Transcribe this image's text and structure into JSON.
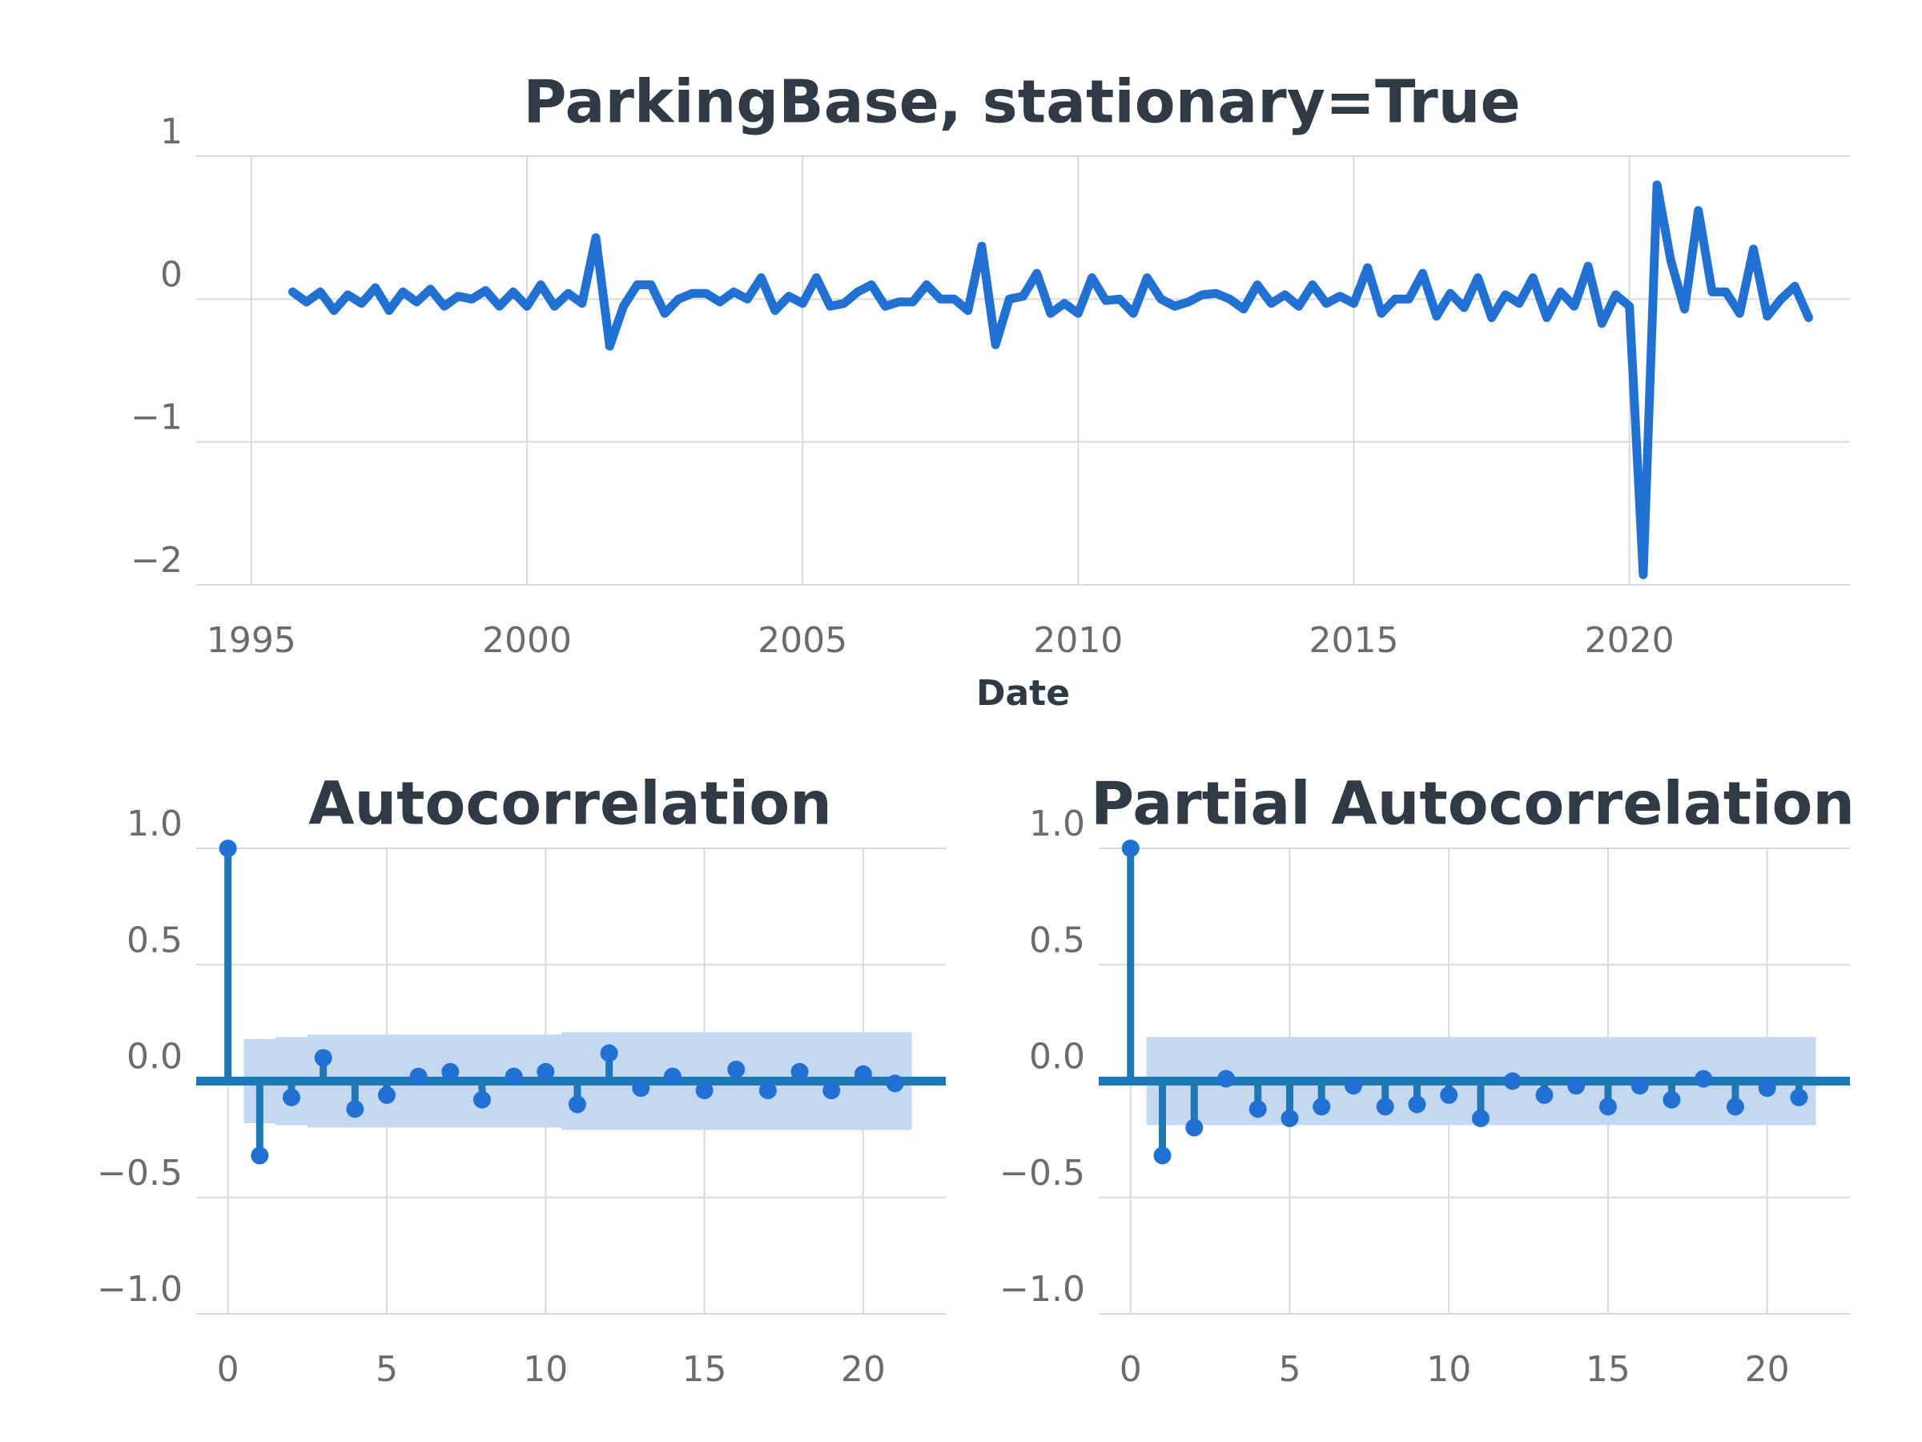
{
  "chart_data": [
    {
      "type": "line",
      "title": "ParkingBase, stationary=True",
      "xlabel": "Date",
      "color": "#2171d2",
      "grid": true,
      "x": [
        1995.75,
        1996,
        1996.25,
        1996.5,
        1996.75,
        1997,
        1997.25,
        1997.5,
        1997.75,
        1998,
        1998.25,
        1998.5,
        1998.75,
        1999,
        1999.25,
        1999.5,
        1999.75,
        2000,
        2000.25,
        2000.5,
        2000.75,
        2001,
        2001.25,
        2001.5,
        2001.75,
        2002,
        2002.25,
        2002.5,
        2002.75,
        2003,
        2003.25,
        2003.5,
        2003.75,
        2004,
        2004.25,
        2004.5,
        2004.75,
        2005,
        2005.25,
        2005.5,
        2005.75,
        2006,
        2006.25,
        2006.5,
        2006.75,
        2007,
        2007.25,
        2007.5,
        2007.75,
        2008,
        2008.25,
        2008.5,
        2008.75,
        2009,
        2009.25,
        2009.5,
        2009.75,
        2010,
        2010.25,
        2010.5,
        2010.75,
        2011,
        2011.25,
        2011.5,
        2011.75,
        2012,
        2012.25,
        2012.5,
        2012.75,
        2013,
        2013.25,
        2013.5,
        2013.75,
        2014,
        2014.25,
        2014.5,
        2014.75,
        2015,
        2015.25,
        2015.5,
        2015.75,
        2016,
        2016.25,
        2016.5,
        2016.75,
        2017,
        2017.25,
        2017.5,
        2017.75,
        2018,
        2018.25,
        2018.5,
        2018.75,
        2019,
        2019.25,
        2019.5,
        2019.75,
        2020,
        2020.25,
        2020.5,
        2020.75,
        2021,
        2021.25,
        2021.5,
        2021.75,
        2022,
        2022.25,
        2022.5,
        2022.75,
        2023,
        2023.25
      ],
      "values": [
        0.05,
        -0.02,
        0.05,
        -0.08,
        0.03,
        -0.03,
        0.08,
        -0.08,
        0.05,
        -0.02,
        0.07,
        -0.05,
        0.02,
        0.0,
        0.06,
        -0.05,
        0.05,
        -0.05,
        0.1,
        -0.05,
        0.04,
        -0.03,
        0.43,
        -0.33,
        -0.05,
        0.1,
        0.1,
        -0.1,
        0.0,
        0.04,
        0.04,
        -0.02,
        0.05,
        0.0,
        0.15,
        -0.08,
        0.02,
        -0.03,
        0.15,
        -0.05,
        -0.03,
        0.05,
        0.1,
        -0.05,
        -0.02,
        -0.02,
        0.1,
        0.0,
        0.0,
        -0.08,
        0.37,
        -0.32,
        0.0,
        0.02,
        0.18,
        -0.1,
        -0.03,
        -0.1,
        0.15,
        -0.01,
        0.0,
        -0.1,
        0.15,
        0.0,
        -0.05,
        -0.02,
        0.03,
        0.04,
        0.0,
        -0.07,
        0.1,
        -0.03,
        0.03,
        -0.05,
        0.1,
        -0.03,
        0.02,
        -0.03,
        0.22,
        -0.1,
        0.0,
        0.0,
        0.18,
        -0.12,
        0.04,
        -0.06,
        0.15,
        -0.13,
        0.03,
        -0.03,
        0.15,
        -0.13,
        0.05,
        -0.05,
        0.23,
        -0.17,
        0.03,
        -0.05,
        -1.93,
        0.8,
        0.27,
        -0.07,
        0.62,
        0.05,
        0.05,
        -0.1,
        0.35,
        -0.12,
        0.0,
        0.09,
        -0.13
      ],
      "xlim": [
        1994,
        2024
      ],
      "ylim": [
        -2,
        1
      ],
      "xticks": [
        1995,
        2000,
        2005,
        2010,
        2015,
        2020
      ],
      "yticks": [
        1,
        0,
        {
          "value": -1,
          "label": "−1"
        },
        {
          "value": -2,
          "label": "−2"
        }
      ]
    },
    {
      "type": "stem",
      "title": "Autocorrelation",
      "color": "#1f77b4",
      "marker_color": "#2171d2",
      "band_color": "#c5d8f1",
      "grid": true,
      "x": [
        0,
        1,
        2,
        3,
        4,
        5,
        6,
        7,
        8,
        9,
        10,
        11,
        12,
        13,
        14,
        15,
        16,
        17,
        18,
        19,
        20,
        21
      ],
      "values": [
        1.0,
        -0.32,
        -0.07,
        0.1,
        -0.12,
        -0.06,
        0.02,
        0.04,
        -0.08,
        0.02,
        0.04,
        -0.1,
        0.12,
        -0.03,
        0.02,
        -0.04,
        0.05,
        -0.04,
        0.04,
        -0.04,
        0.03,
        -0.01
      ],
      "conf_upper": [
        0.18,
        0.19,
        0.2,
        0.2,
        0.2,
        0.2,
        0.2,
        0.2,
        0.2,
        0.2,
        0.21,
        0.21,
        0.21,
        0.21,
        0.21,
        0.21,
        0.21,
        0.21,
        0.21,
        0.21,
        0.21
      ],
      "conf_lower": [
        -0.18,
        -0.19,
        -0.2,
        -0.2,
        -0.2,
        -0.2,
        -0.2,
        -0.2,
        -0.2,
        -0.2,
        -0.21,
        -0.21,
        -0.21,
        -0.21,
        -0.21,
        -0.21,
        -0.21,
        -0.21,
        -0.21,
        -0.21,
        -0.21
      ],
      "xlim": [
        -1,
        22.6
      ],
      "ylim": [
        -1,
        1
      ],
      "xticks": [
        0,
        5,
        10,
        15,
        20
      ],
      "yticks": [
        {
          "value": 1,
          "label": "1.0"
        },
        0.5,
        {
          "value": 0,
          "label": "0.0"
        },
        {
          "value": -0.5,
          "label": "−0.5"
        },
        {
          "value": -1,
          "label": "−1.0"
        }
      ]
    },
    {
      "type": "stem",
      "title": "Partial Autocorrelation",
      "color": "#1f77b4",
      "marker_color": "#2171d2",
      "band_color": "#c5d8f1",
      "grid": true,
      "x": [
        0,
        1,
        2,
        3,
        4,
        5,
        6,
        7,
        8,
        9,
        10,
        11,
        12,
        13,
        14,
        15,
        16,
        17,
        18,
        19,
        20,
        21
      ],
      "values": [
        1.0,
        -0.32,
        -0.2,
        0.01,
        -0.12,
        -0.16,
        -0.11,
        -0.02,
        -0.11,
        -0.1,
        -0.06,
        -0.16,
        0.0,
        -0.06,
        -0.02,
        -0.11,
        -0.02,
        -0.08,
        0.01,
        -0.11,
        -0.03,
        -0.07
      ],
      "conf_upper": [
        0.19,
        0.19,
        0.19,
        0.19,
        0.19,
        0.19,
        0.19,
        0.19,
        0.19,
        0.19,
        0.19,
        0.19,
        0.19,
        0.19,
        0.19,
        0.19,
        0.19,
        0.19,
        0.19,
        0.19,
        0.19
      ],
      "conf_lower": [
        -0.19,
        -0.19,
        -0.19,
        -0.19,
        -0.19,
        -0.19,
        -0.19,
        -0.19,
        -0.19,
        -0.19,
        -0.19,
        -0.19,
        -0.19,
        -0.19,
        -0.19,
        -0.19,
        -0.19,
        -0.19,
        -0.19,
        -0.19,
        -0.19
      ],
      "xlim": [
        -1,
        22.6
      ],
      "ylim": [
        -1,
        1
      ],
      "xticks": [
        0,
        5,
        10,
        15,
        20
      ],
      "yticks": [
        {
          "value": 1,
          "label": "1.0"
        },
        0.5,
        {
          "value": 0,
          "label": "0.0"
        },
        {
          "value": -0.5,
          "label": "−0.5"
        },
        {
          "value": -1,
          "label": "−1.0"
        }
      ]
    }
  ]
}
